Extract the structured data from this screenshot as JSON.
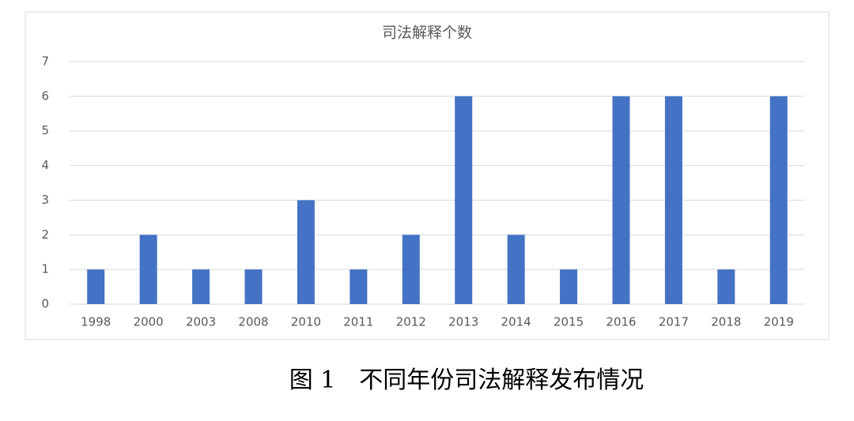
{
  "chart_data": {
    "type": "bar",
    "title": "司法解释个数",
    "categories": [
      "1998",
      "2000",
      "2003",
      "2008",
      "2010",
      "2011",
      "2012",
      "2013",
      "2014",
      "2015",
      "2016",
      "2017",
      "2018",
      "2019"
    ],
    "values": [
      1,
      2,
      1,
      1,
      3,
      1,
      2,
      6,
      2,
      1,
      6,
      6,
      1,
      6
    ],
    "color": "#4472c4",
    "ylim": [
      0,
      7
    ],
    "yticks": [
      0,
      1,
      2,
      3,
      4,
      5,
      6,
      7
    ],
    "grid": true
  },
  "caption": "图 1　不同年份司法解释发布情况"
}
